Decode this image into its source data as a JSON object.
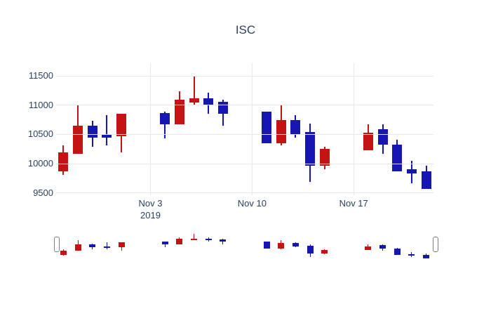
{
  "title": "ISC",
  "chart_data": {
    "type": "candlestick",
    "title": "ISC",
    "xlabel": "",
    "ylabel": "",
    "legend": "none",
    "grid": "on",
    "colors": {
      "increasing": "#c51212",
      "decreasing": "#1616b0",
      "grid": "#e8e8e8",
      "font": "#2a3f5f",
      "background": "#ffffff",
      "handle_border": "#7f7f7f"
    },
    "y_range": [
      9460,
      11720
    ],
    "x_range_days": [
      -0.5,
      25.5
    ],
    "yticks": [
      {
        "value": 9500,
        "label": "9500"
      },
      {
        "value": 10000,
        "label": "10000"
      },
      {
        "value": 10500,
        "label": "10500"
      },
      {
        "value": 11000,
        "label": "11000"
      },
      {
        "value": 11500,
        "label": "11500"
      }
    ],
    "xticks": [
      {
        "date": "2019-11-03",
        "label": "Nov 3",
        "sublabel": "2019"
      },
      {
        "date": "2019-11-10",
        "label": "Nov 10",
        "sublabel": ""
      },
      {
        "date": "2019-11-17",
        "label": "Nov 17",
        "sublabel": ""
      }
    ],
    "candles": [
      {
        "date": "2019-10-28",
        "open": 9870,
        "high": 10310,
        "low": 9810,
        "close": 10190
      },
      {
        "date": "2019-10-29",
        "open": 10170,
        "high": 11000,
        "low": 10170,
        "close": 10650
      },
      {
        "date": "2019-10-30",
        "open": 10650,
        "high": 10730,
        "low": 10290,
        "close": 10450
      },
      {
        "date": "2019-10-31",
        "open": 10510,
        "high": 10830,
        "low": 10310,
        "close": 10450
      },
      {
        "date": "2019-11-01",
        "open": 10470,
        "high": 10850,
        "low": 10190,
        "close": 10850
      },
      {
        "date": "2019-11-04",
        "open": 10870,
        "high": 10890,
        "low": 10430,
        "close": 10670
      },
      {
        "date": "2019-11-05",
        "open": 10670,
        "high": 11240,
        "low": 10670,
        "close": 11090
      },
      {
        "date": "2019-11-06",
        "open": 11050,
        "high": 11490,
        "low": 11000,
        "close": 11120
      },
      {
        "date": "2019-11-07",
        "open": 11120,
        "high": 11210,
        "low": 10860,
        "close": 11000
      },
      {
        "date": "2019-11-08",
        "open": 11060,
        "high": 11100,
        "low": 10650,
        "close": 10860
      },
      {
        "date": "2019-11-11",
        "open": 10890,
        "high": 10890,
        "low": 10350,
        "close": 10350
      },
      {
        "date": "2019-11-12",
        "open": 10350,
        "high": 11010,
        "low": 10310,
        "close": 10750
      },
      {
        "date": "2019-11-13",
        "open": 10750,
        "high": 10830,
        "low": 10450,
        "close": 10510
      },
      {
        "date": "2019-11-14",
        "open": 10540,
        "high": 10690,
        "low": 9690,
        "close": 9970
      },
      {
        "date": "2019-11-15",
        "open": 9970,
        "high": 10290,
        "low": 9910,
        "close": 10250
      },
      {
        "date": "2019-11-18",
        "open": 10230,
        "high": 10670,
        "low": 10230,
        "close": 10530
      },
      {
        "date": "2019-11-19",
        "open": 10590,
        "high": 10670,
        "low": 10170,
        "close": 10330
      },
      {
        "date": "2019-11-20",
        "open": 10330,
        "high": 10410,
        "low": 9870,
        "close": 9870
      },
      {
        "date": "2019-11-21",
        "open": 9910,
        "high": 10050,
        "low": 9670,
        "close": 9830
      },
      {
        "date": "2019-11-22",
        "open": 9870,
        "high": 9970,
        "low": 9570,
        "close": 9570
      }
    ],
    "rangeslider": {
      "enabled": true,
      "value_range": [
        9570,
        11490
      ]
    }
  }
}
